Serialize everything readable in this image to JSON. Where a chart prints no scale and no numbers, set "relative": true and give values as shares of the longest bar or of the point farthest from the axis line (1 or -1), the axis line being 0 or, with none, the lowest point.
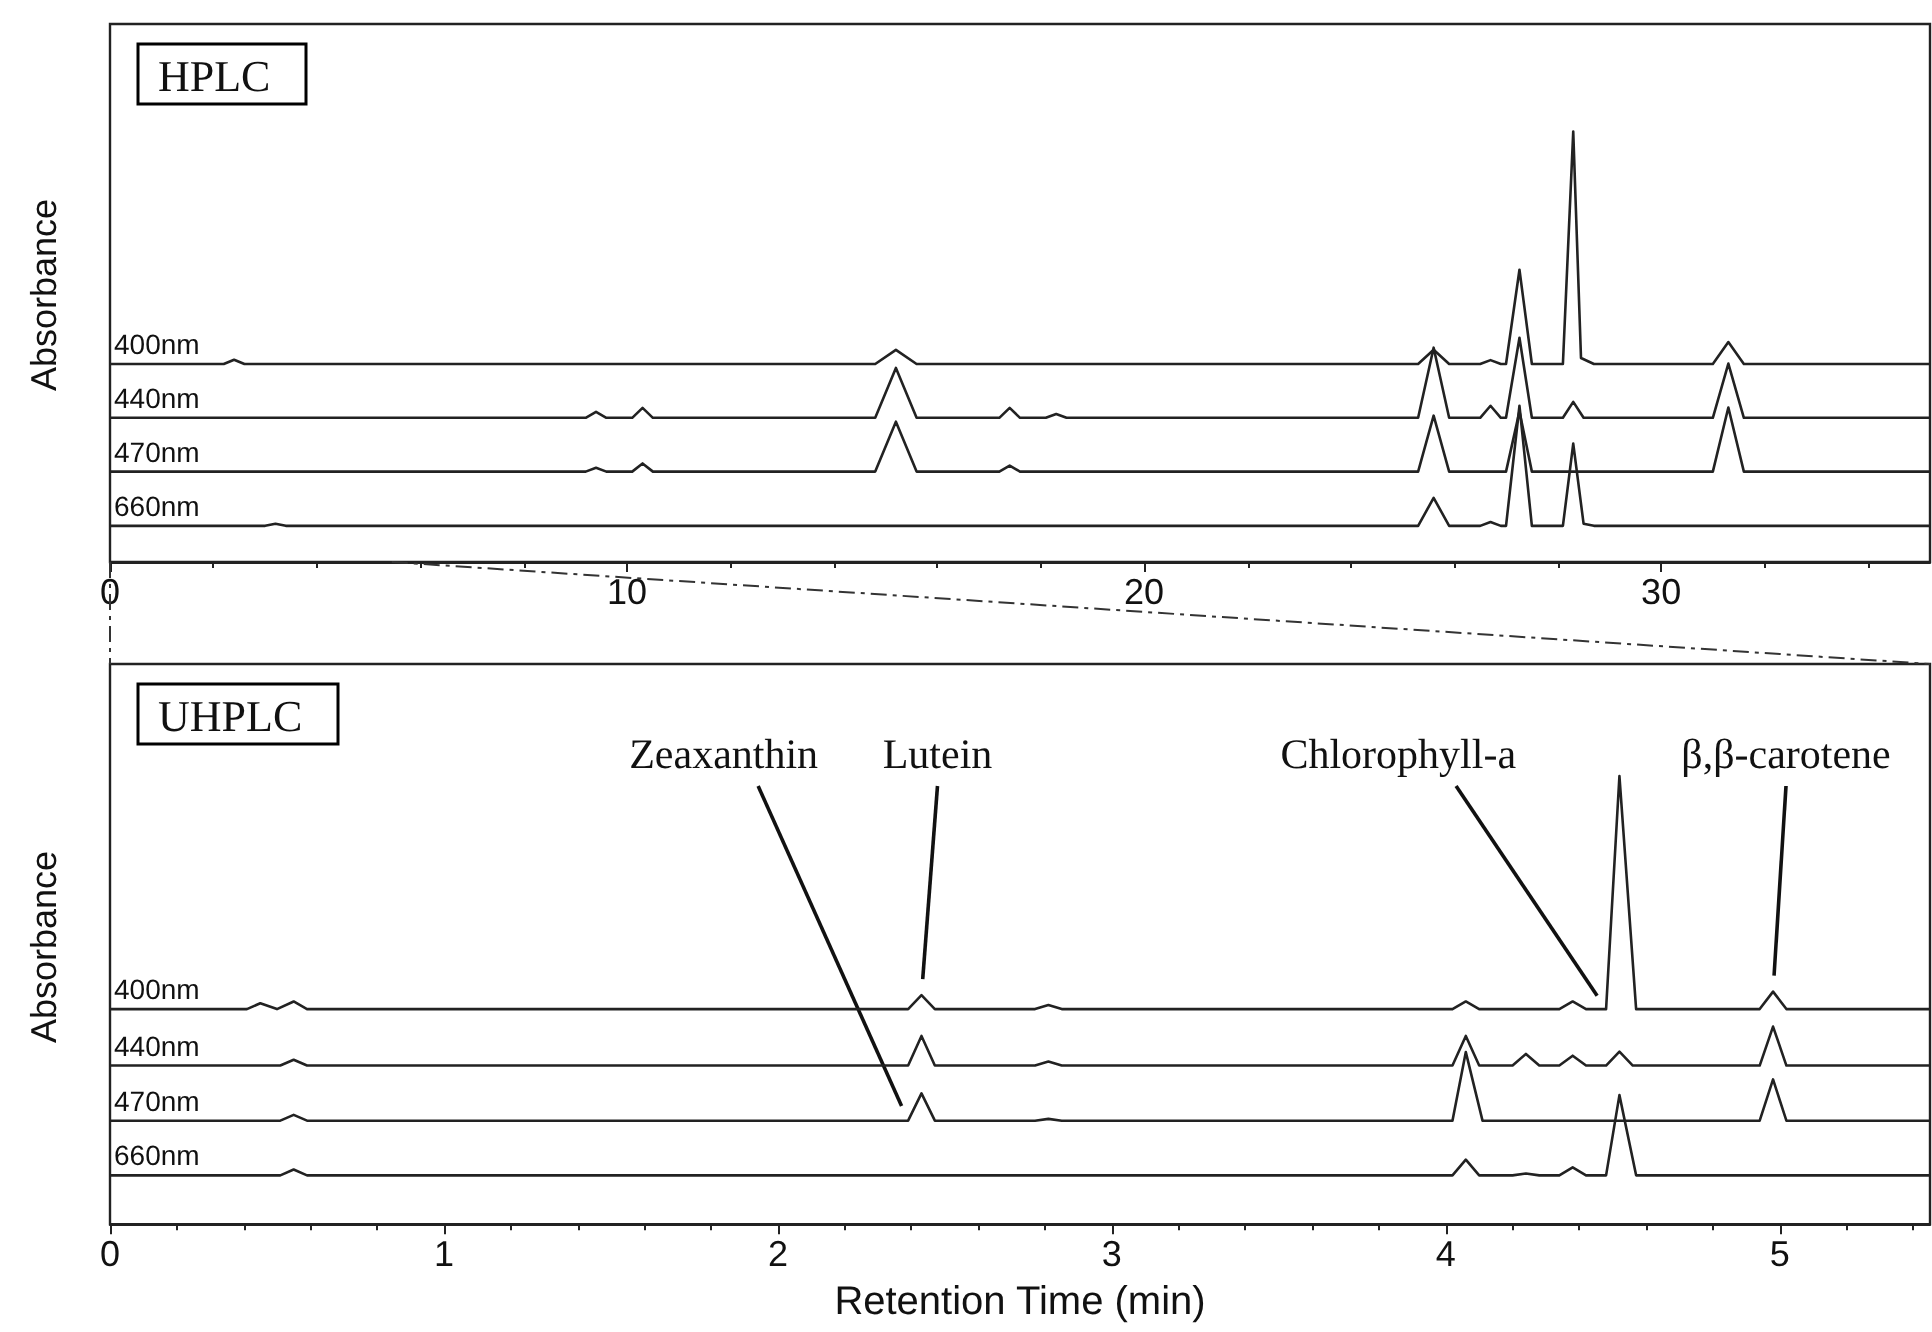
{
  "chart_data": [
    {
      "type": "line",
      "title": "HPLC",
      "ylabel": "Absorbance",
      "relative": true,
      "xlim": [
        0,
        35.2
      ],
      "xticks": [
        0,
        10,
        20,
        30
      ],
      "series": [
        {
          "name": "400nm",
          "color": "#222222",
          "x": [
            0,
            2.2,
            2.4,
            2.6,
            14.8,
            15.2,
            15.6,
            25.3,
            25.6,
            25.9,
            26.5,
            26.7,
            26.9,
            27.0,
            27.26,
            27.5,
            28.1,
            28.3,
            28.45,
            28.7,
            31.0,
            31.3,
            31.6,
            35.2
          ],
          "values": [
            0.46,
            0.46,
            0.47,
            0.46,
            0.46,
            0.493,
            0.46,
            0.46,
            0.493,
            0.46,
            0.46,
            0.469,
            0.46,
            0.46,
            0.679,
            0.46,
            0.46,
            1.0,
            0.474,
            0.46,
            0.46,
            0.511,
            0.46,
            0.46
          ]
        },
        {
          "name": "440nm",
          "color": "#222222",
          "x": [
            0,
            9.2,
            9.4,
            9.6,
            10.1,
            10.3,
            10.5,
            14.8,
            15.2,
            15.6,
            17.2,
            17.4,
            17.6,
            18.1,
            18.3,
            18.5,
            25.3,
            25.6,
            25.9,
            26.5,
            26.7,
            26.9,
            27.0,
            27.26,
            27.5,
            28.1,
            28.3,
            28.5,
            31.0,
            31.3,
            31.6,
            35.2
          ],
          "values": [
            0.335,
            0.335,
            0.349,
            0.335,
            0.335,
            0.358,
            0.335,
            0.335,
            0.451,
            0.335,
            0.335,
            0.358,
            0.335,
            0.335,
            0.344,
            0.335,
            0.335,
            0.498,
            0.335,
            0.335,
            0.363,
            0.335,
            0.335,
            0.521,
            0.335,
            0.335,
            0.372,
            0.335,
            0.335,
            0.461,
            0.335,
            0.335
          ]
        },
        {
          "name": "470nm",
          "color": "#222222",
          "x": [
            0,
            9.2,
            9.4,
            9.6,
            10.1,
            10.3,
            10.5,
            14.8,
            15.2,
            15.6,
            17.2,
            17.4,
            17.6,
            25.3,
            25.6,
            25.9,
            27.0,
            27.26,
            27.5,
            31.0,
            31.3,
            31.6,
            35.2
          ],
          "values": [
            0.21,
            0.21,
            0.219,
            0.21,
            0.21,
            0.229,
            0.21,
            0.21,
            0.326,
            0.21,
            0.21,
            0.224,
            0.21,
            0.21,
            0.34,
            0.21,
            0.21,
            0.35,
            0.21,
            0.21,
            0.359,
            0.21,
            0.21
          ]
        },
        {
          "name": "660nm",
          "color": "#222222",
          "x": [
            0,
            3.0,
            3.2,
            3.4,
            25.3,
            25.6,
            25.9,
            26.5,
            26.7,
            26.9,
            27.0,
            27.26,
            27.5,
            28.1,
            28.3,
            28.5,
            28.7,
            35.2
          ],
          "values": [
            0.084,
            0.084,
            0.089,
            0.084,
            0.084,
            0.149,
            0.084,
            0.084,
            0.093,
            0.084,
            0.084,
            0.363,
            0.084,
            0.084,
            0.275,
            0.089,
            0.084,
            0.084
          ]
        }
      ]
    },
    {
      "type": "line",
      "title": "UHPLC",
      "ylabel": "Absorbance",
      "xlabel": "Retention Time (min)",
      "relative": true,
      "xlim": [
        0,
        5.45
      ],
      "xticks": [
        0,
        1,
        2,
        3,
        4,
        5
      ],
      "annotations": [
        {
          "text": "Zeaxanthin",
          "x": 2.39,
          "y": 0.231
        },
        {
          "text": "Lutein",
          "x": 2.43,
          "y": 0.511
        },
        {
          "text": "Chlorophyll-a",
          "x": 4.48,
          "y": 0.48
        },
        {
          "text": "β,β-carotene",
          "x": 4.98,
          "y": 0.519
        }
      ],
      "series": [
        {
          "name": "400nm",
          "color": "#222222",
          "x": [
            0,
            0.41,
            0.45,
            0.5,
            0.55,
            0.59,
            2.39,
            2.43,
            2.47,
            2.77,
            2.81,
            2.85,
            4.02,
            4.06,
            4.1,
            4.34,
            4.38,
            4.42,
            4.48,
            4.52,
            4.57,
            4.94,
            4.98,
            5.02,
            5.45
          ],
          "values": [
            0.48,
            0.48,
            0.493,
            0.48,
            0.497,
            0.48,
            0.48,
            0.511,
            0.48,
            0.48,
            0.489,
            0.48,
            0.48,
            0.497,
            0.48,
            0.48,
            0.497,
            0.48,
            0.48,
            1.0,
            0.48,
            0.48,
            0.519,
            0.48,
            0.48
          ]
        },
        {
          "name": "440nm",
          "color": "#222222",
          "x": [
            0,
            0.51,
            0.55,
            0.59,
            2.39,
            2.43,
            2.47,
            2.77,
            2.81,
            2.85,
            4.02,
            4.06,
            4.1,
            4.2,
            4.24,
            4.28,
            4.34,
            4.38,
            4.42,
            4.48,
            4.52,
            4.56,
            4.94,
            4.98,
            5.02,
            5.45
          ],
          "values": [
            0.354,
            0.354,
            0.367,
            0.354,
            0.354,
            0.42,
            0.354,
            0.354,
            0.363,
            0.354,
            0.354,
            0.42,
            0.354,
            0.354,
            0.38,
            0.354,
            0.354,
            0.376,
            0.354,
            0.354,
            0.385,
            0.354,
            0.354,
            0.441,
            0.354,
            0.354
          ]
        },
        {
          "name": "470nm",
          "color": "#222222",
          "x": [
            0,
            0.51,
            0.55,
            0.59,
            2.39,
            2.43,
            2.47,
            2.77,
            2.81,
            2.85,
            4.02,
            4.06,
            4.11,
            4.94,
            4.98,
            5.02,
            5.45
          ],
          "values": [
            0.231,
            0.231,
            0.244,
            0.231,
            0.231,
            0.292,
            0.231,
            0.231,
            0.235,
            0.231,
            0.231,
            0.384,
            0.231,
            0.231,
            0.323,
            0.231,
            0.231
          ]
        },
        {
          "name": "660nm",
          "color": "#222222",
          "x": [
            0,
            0.51,
            0.55,
            0.59,
            4.02,
            4.06,
            4.1,
            4.2,
            4.24,
            4.28,
            4.34,
            4.38,
            4.42,
            4.48,
            4.52,
            4.57,
            5.45
          ],
          "values": [
            0.109,
            0.109,
            0.122,
            0.109,
            0.109,
            0.144,
            0.109,
            0.109,
            0.113,
            0.109,
            0.109,
            0.127,
            0.109,
            0.109,
            0.288,
            0.109,
            0.109
          ]
        }
      ]
    }
  ]
}
